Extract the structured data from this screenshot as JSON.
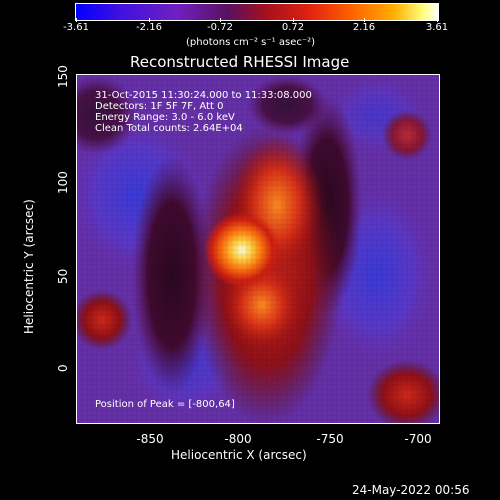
{
  "colorbar": {
    "ticks": [
      "-3.61",
      "-2.16",
      "-0.72",
      "0.72",
      "2.16",
      "3.61"
    ],
    "units": "(photons cm⁻² s⁻¹ asec⁻²)"
  },
  "title": "Reconstructed RHESSI Image",
  "annotations": {
    "time_range": "31-Oct-2015 11:30:24.000 to 11:33:08.000",
    "detectors": "Detectors: 1F 5F 7F, Att 0",
    "energy_range": "Energy Range: 3.0 - 6.0 keV",
    "clean_counts": "Clean     Total counts: 2.64E+04",
    "peak_position": "Position of Peak = [-800,64]"
  },
  "x_axis": {
    "label": "Heliocentric X (arcsec)",
    "ticks": [
      "-850",
      "-800",
      "-750",
      "-700"
    ]
  },
  "y_axis": {
    "label": "Heliocentric Y (arcsec)",
    "ticks": [
      "150",
      "100",
      "50",
      "0"
    ]
  },
  "footer_timestamp": "24-May-2022 00:56"
}
